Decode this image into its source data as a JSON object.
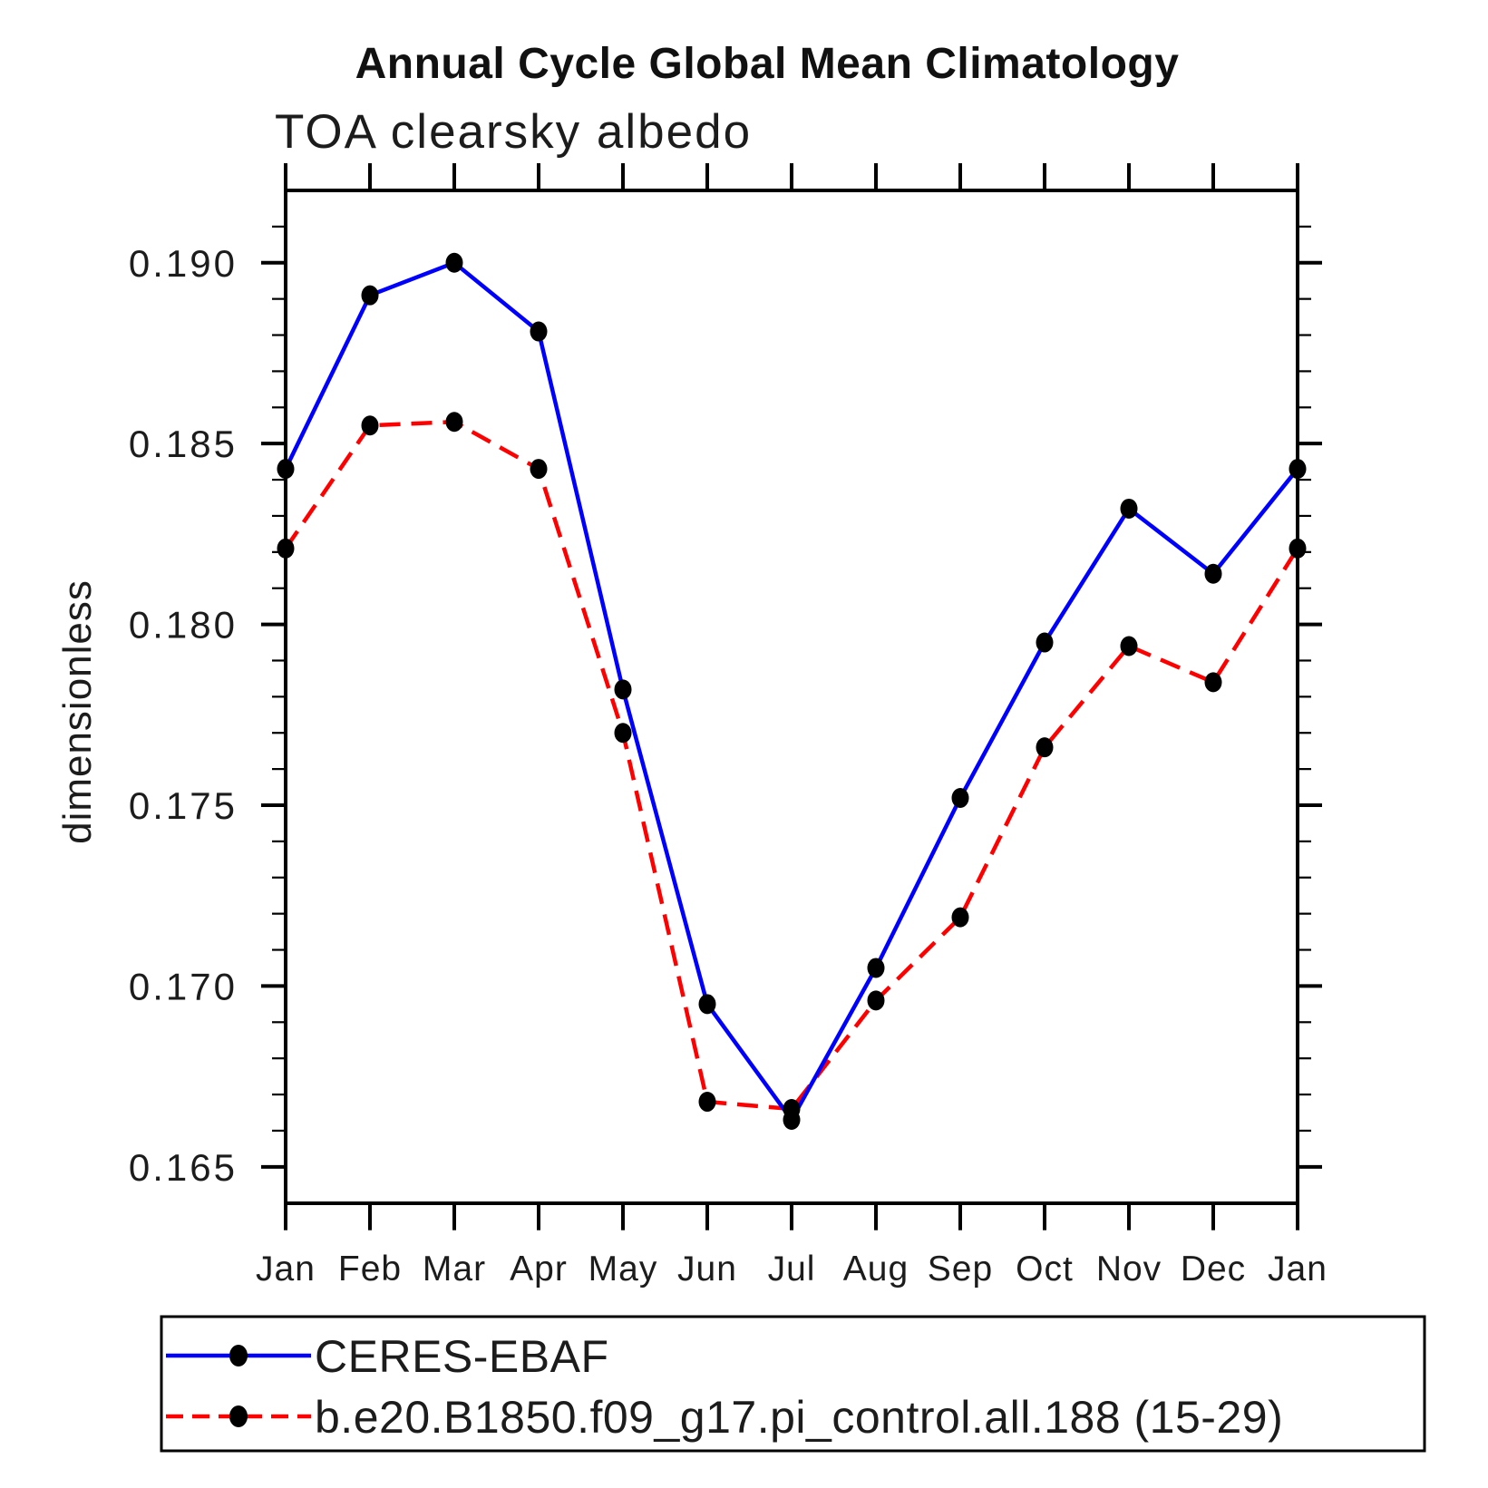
{
  "title": "Annual Cycle Global Mean Climatology",
  "subtitle": "TOA clearsky albedo",
  "chart_data": {
    "type": "line",
    "title": "Annual Cycle Global Mean Climatology",
    "subtitle": "TOA clearsky albedo",
    "xlabel": "",
    "ylabel": "dimensionless",
    "categories": [
      "Jan",
      "Feb",
      "Mar",
      "Apr",
      "May",
      "Jun",
      "Jul",
      "Aug",
      "Sep",
      "Oct",
      "Nov",
      "Dec",
      "Jan"
    ],
    "series": [
      {
        "name": "CERES-EBAF",
        "color": "#0000ff",
        "line_style": "solid",
        "marker": "filled-black-circle",
        "values": [
          0.1843,
          0.1891,
          0.19,
          0.1881,
          0.1782,
          0.1695,
          0.1663,
          0.1705,
          0.1752,
          0.1795,
          0.1832,
          0.1814,
          0.1843
        ]
      },
      {
        "name": "b.e20.B1850.f09_g17.pi_control.all.188 (15-29)",
        "color": "#ff0000",
        "line_style": "dashed",
        "marker": "filled-black-circle",
        "values": [
          0.1821,
          0.1855,
          0.1856,
          0.1843,
          0.177,
          0.1668,
          0.1666,
          0.1696,
          0.1719,
          0.1766,
          0.1794,
          0.1784,
          0.1821
        ]
      }
    ],
    "ylim": [
      0.164,
      0.192
    ],
    "yticks_major": [
      0.165,
      0.17,
      0.175,
      0.18,
      0.185,
      0.19
    ],
    "ytick_labels": [
      "0.165",
      "0.170",
      "0.175",
      "0.180",
      "0.185",
      "0.190"
    ],
    "yminor_step": 0.001,
    "marker_color": "#000000",
    "axis_color": "#000000",
    "grid": false,
    "legend_position": "bottom",
    "tick_direction": "out"
  }
}
